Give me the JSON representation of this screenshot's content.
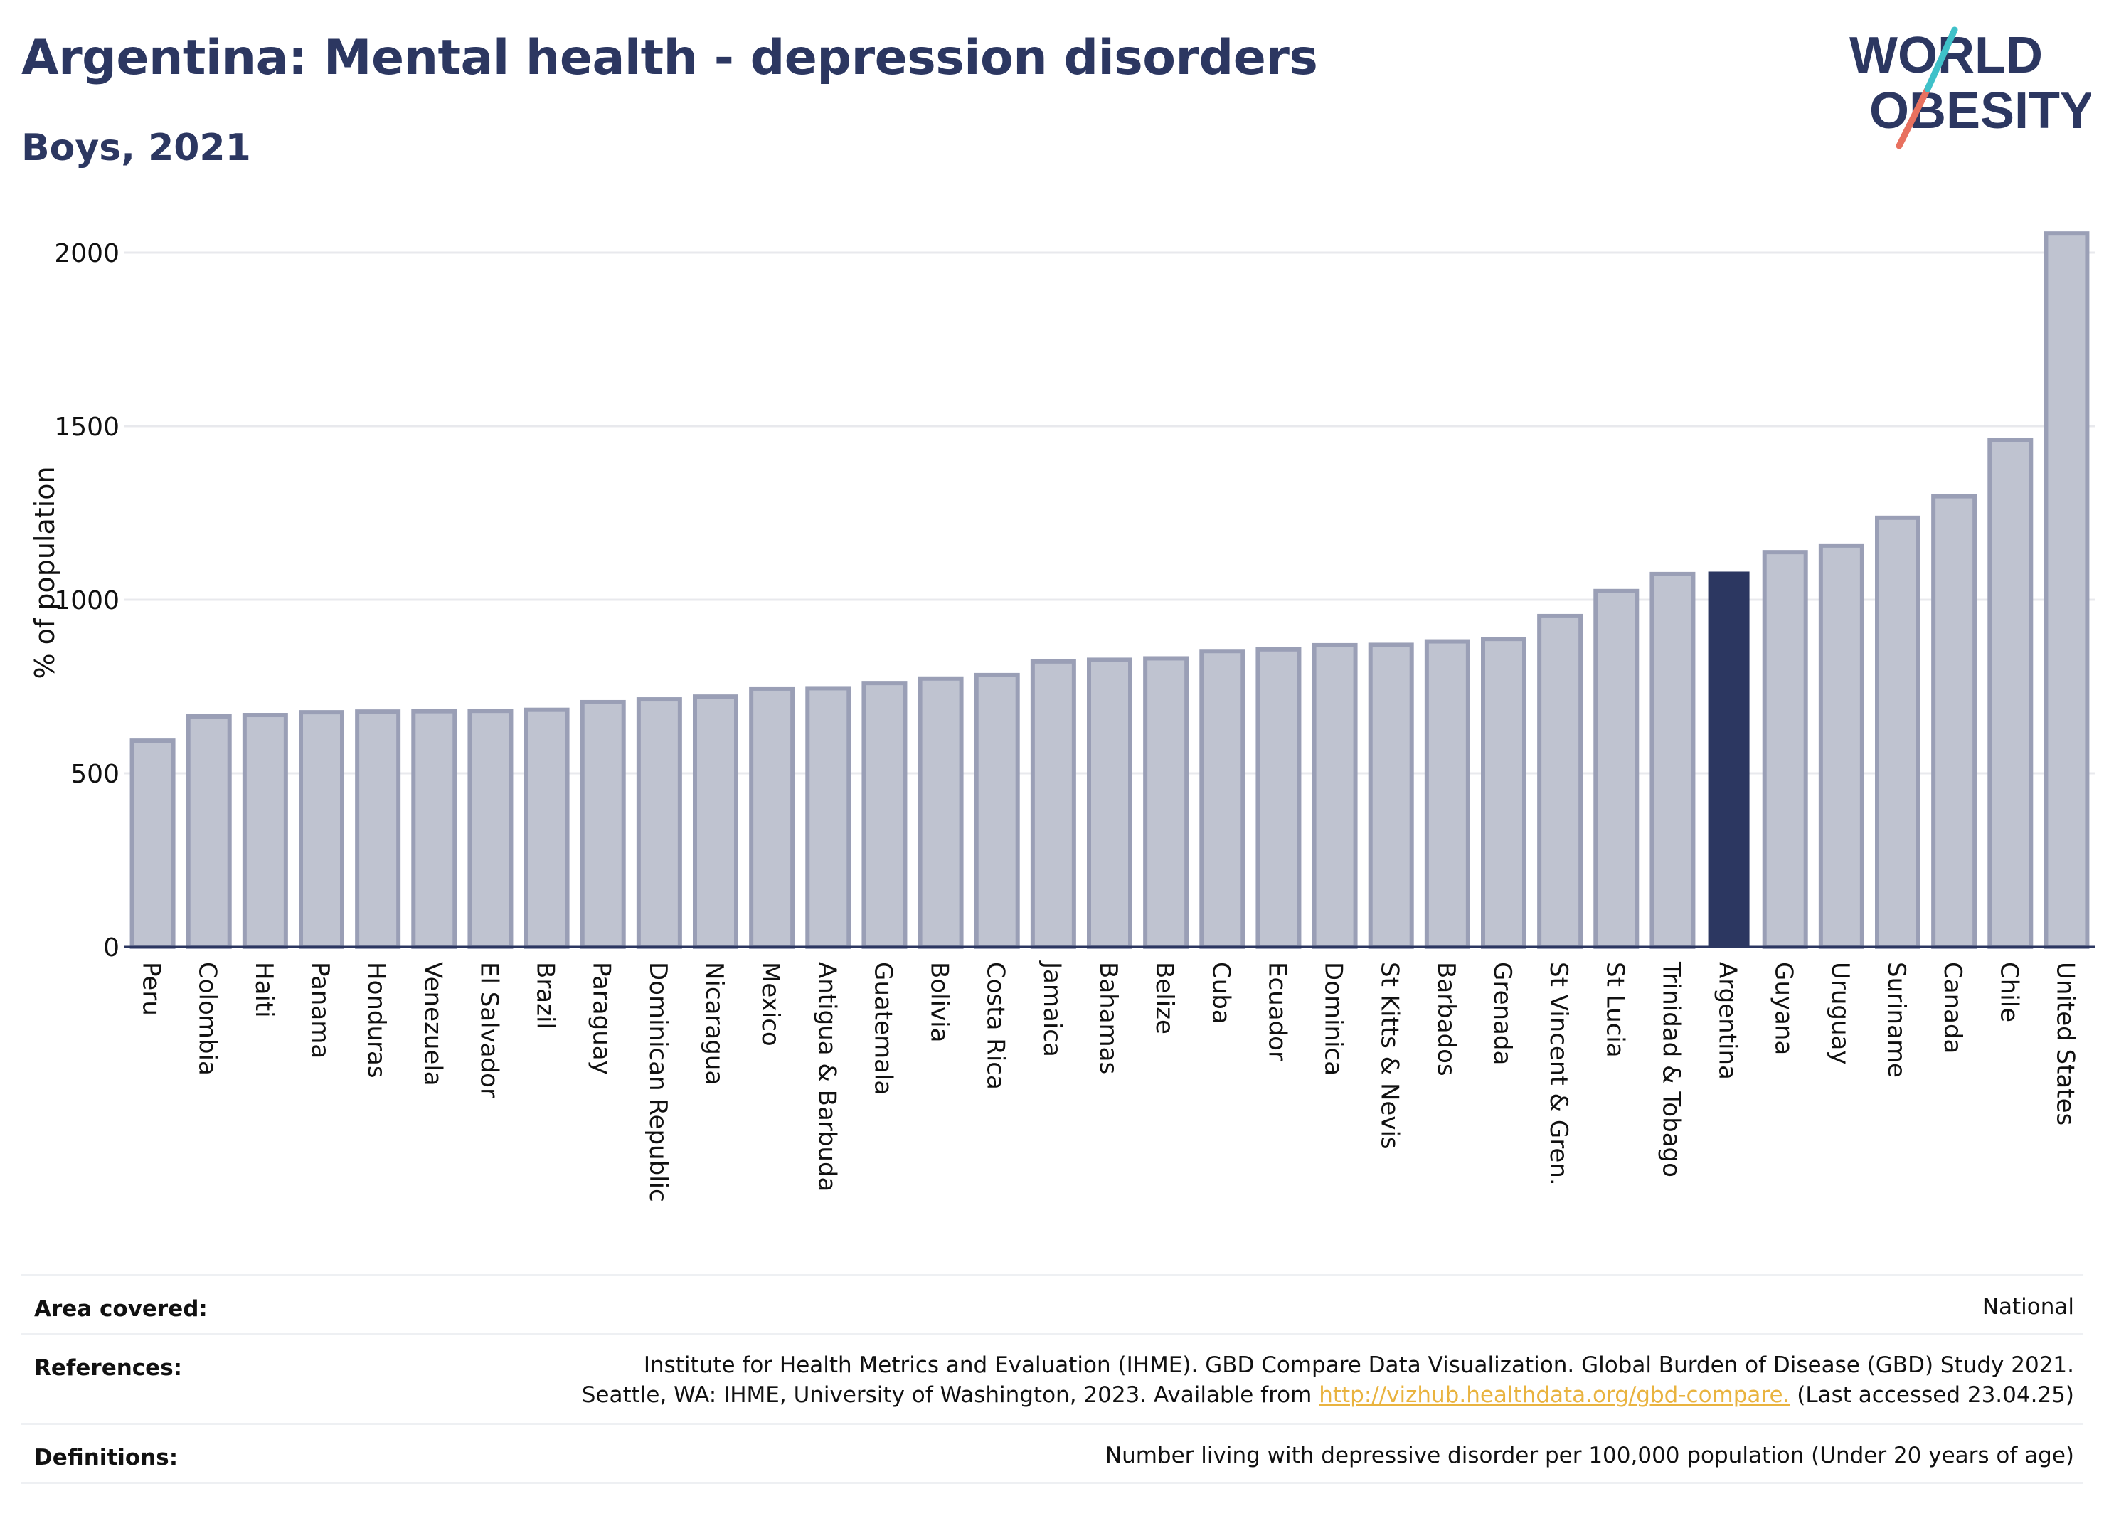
{
  "title": "Argentina: Mental health - depression disorders",
  "subtitle": "Boys, 2021",
  "logo": {
    "line1": "WORLD",
    "line2": "OBESITY"
  },
  "colors": {
    "highlight": "#2c3761",
    "bar_fill": "#bfc3d0",
    "bar_stroke": "#9a9fb6",
    "title": "#2c3761",
    "logo_teal": "#3fc1c9",
    "logo_coral": "#e8715f",
    "link": "#e9b33f"
  },
  "chart_data": {
    "type": "bar",
    "ylabel": "% of population",
    "ylim": [
      0,
      2100
    ],
    "yticks": [
      0,
      500,
      1000,
      1500,
      2000
    ],
    "grid": true,
    "highlight": "Argentina",
    "categories": [
      "Peru",
      "Colombia",
      "Haiti",
      "Panama",
      "Honduras",
      "Venezuela",
      "El Salvador",
      "Brazil",
      "Paraguay",
      "Dominican Republic",
      "Nicaragua",
      "Mexico",
      "Antigua & Barbuda",
      "Guatemala",
      "Bolivia",
      "Costa Rica",
      "Jamaica",
      "Bahamas",
      "Belize",
      "Cuba",
      "Ecuador",
      "Dominica",
      "St Kitts & Nevis",
      "Barbados",
      "Grenada",
      "St Vincent & Gren.",
      "St Lucia",
      "Trinidad & Tobago",
      "Argentina",
      "Guyana",
      "Uruguay",
      "Suriname",
      "Canada",
      "Chile",
      "United States"
    ],
    "values": [
      594,
      664,
      668,
      676,
      678,
      679,
      680,
      683,
      705,
      713,
      721,
      744,
      745,
      760,
      773,
      783,
      822,
      827,
      831,
      852,
      857,
      869,
      870,
      880,
      887,
      953,
      1025,
      1074,
      1081,
      1137,
      1156,
      1236,
      1298,
      1460,
      2055
    ]
  },
  "footer": {
    "area_label": "Area covered:",
    "area_value": "National",
    "references_label": "References:",
    "references_line1": "Institute for Health Metrics and Evaluation (IHME). GBD Compare Data Visualization. Global Burden of Disease (GBD) Study 2021.",
    "references_line2_pre": "Seattle, WA: IHME, University of Washington, 2023. Available from ",
    "references_link": "http://vizhub.healthdata.org/gbd-compare.",
    "references_line2_post": " (Last accessed 23.04.25)",
    "definitions_label": "Definitions:",
    "definitions_value": "Number living with depressive disorder per 100,000 population (Under 20 years of age)"
  }
}
